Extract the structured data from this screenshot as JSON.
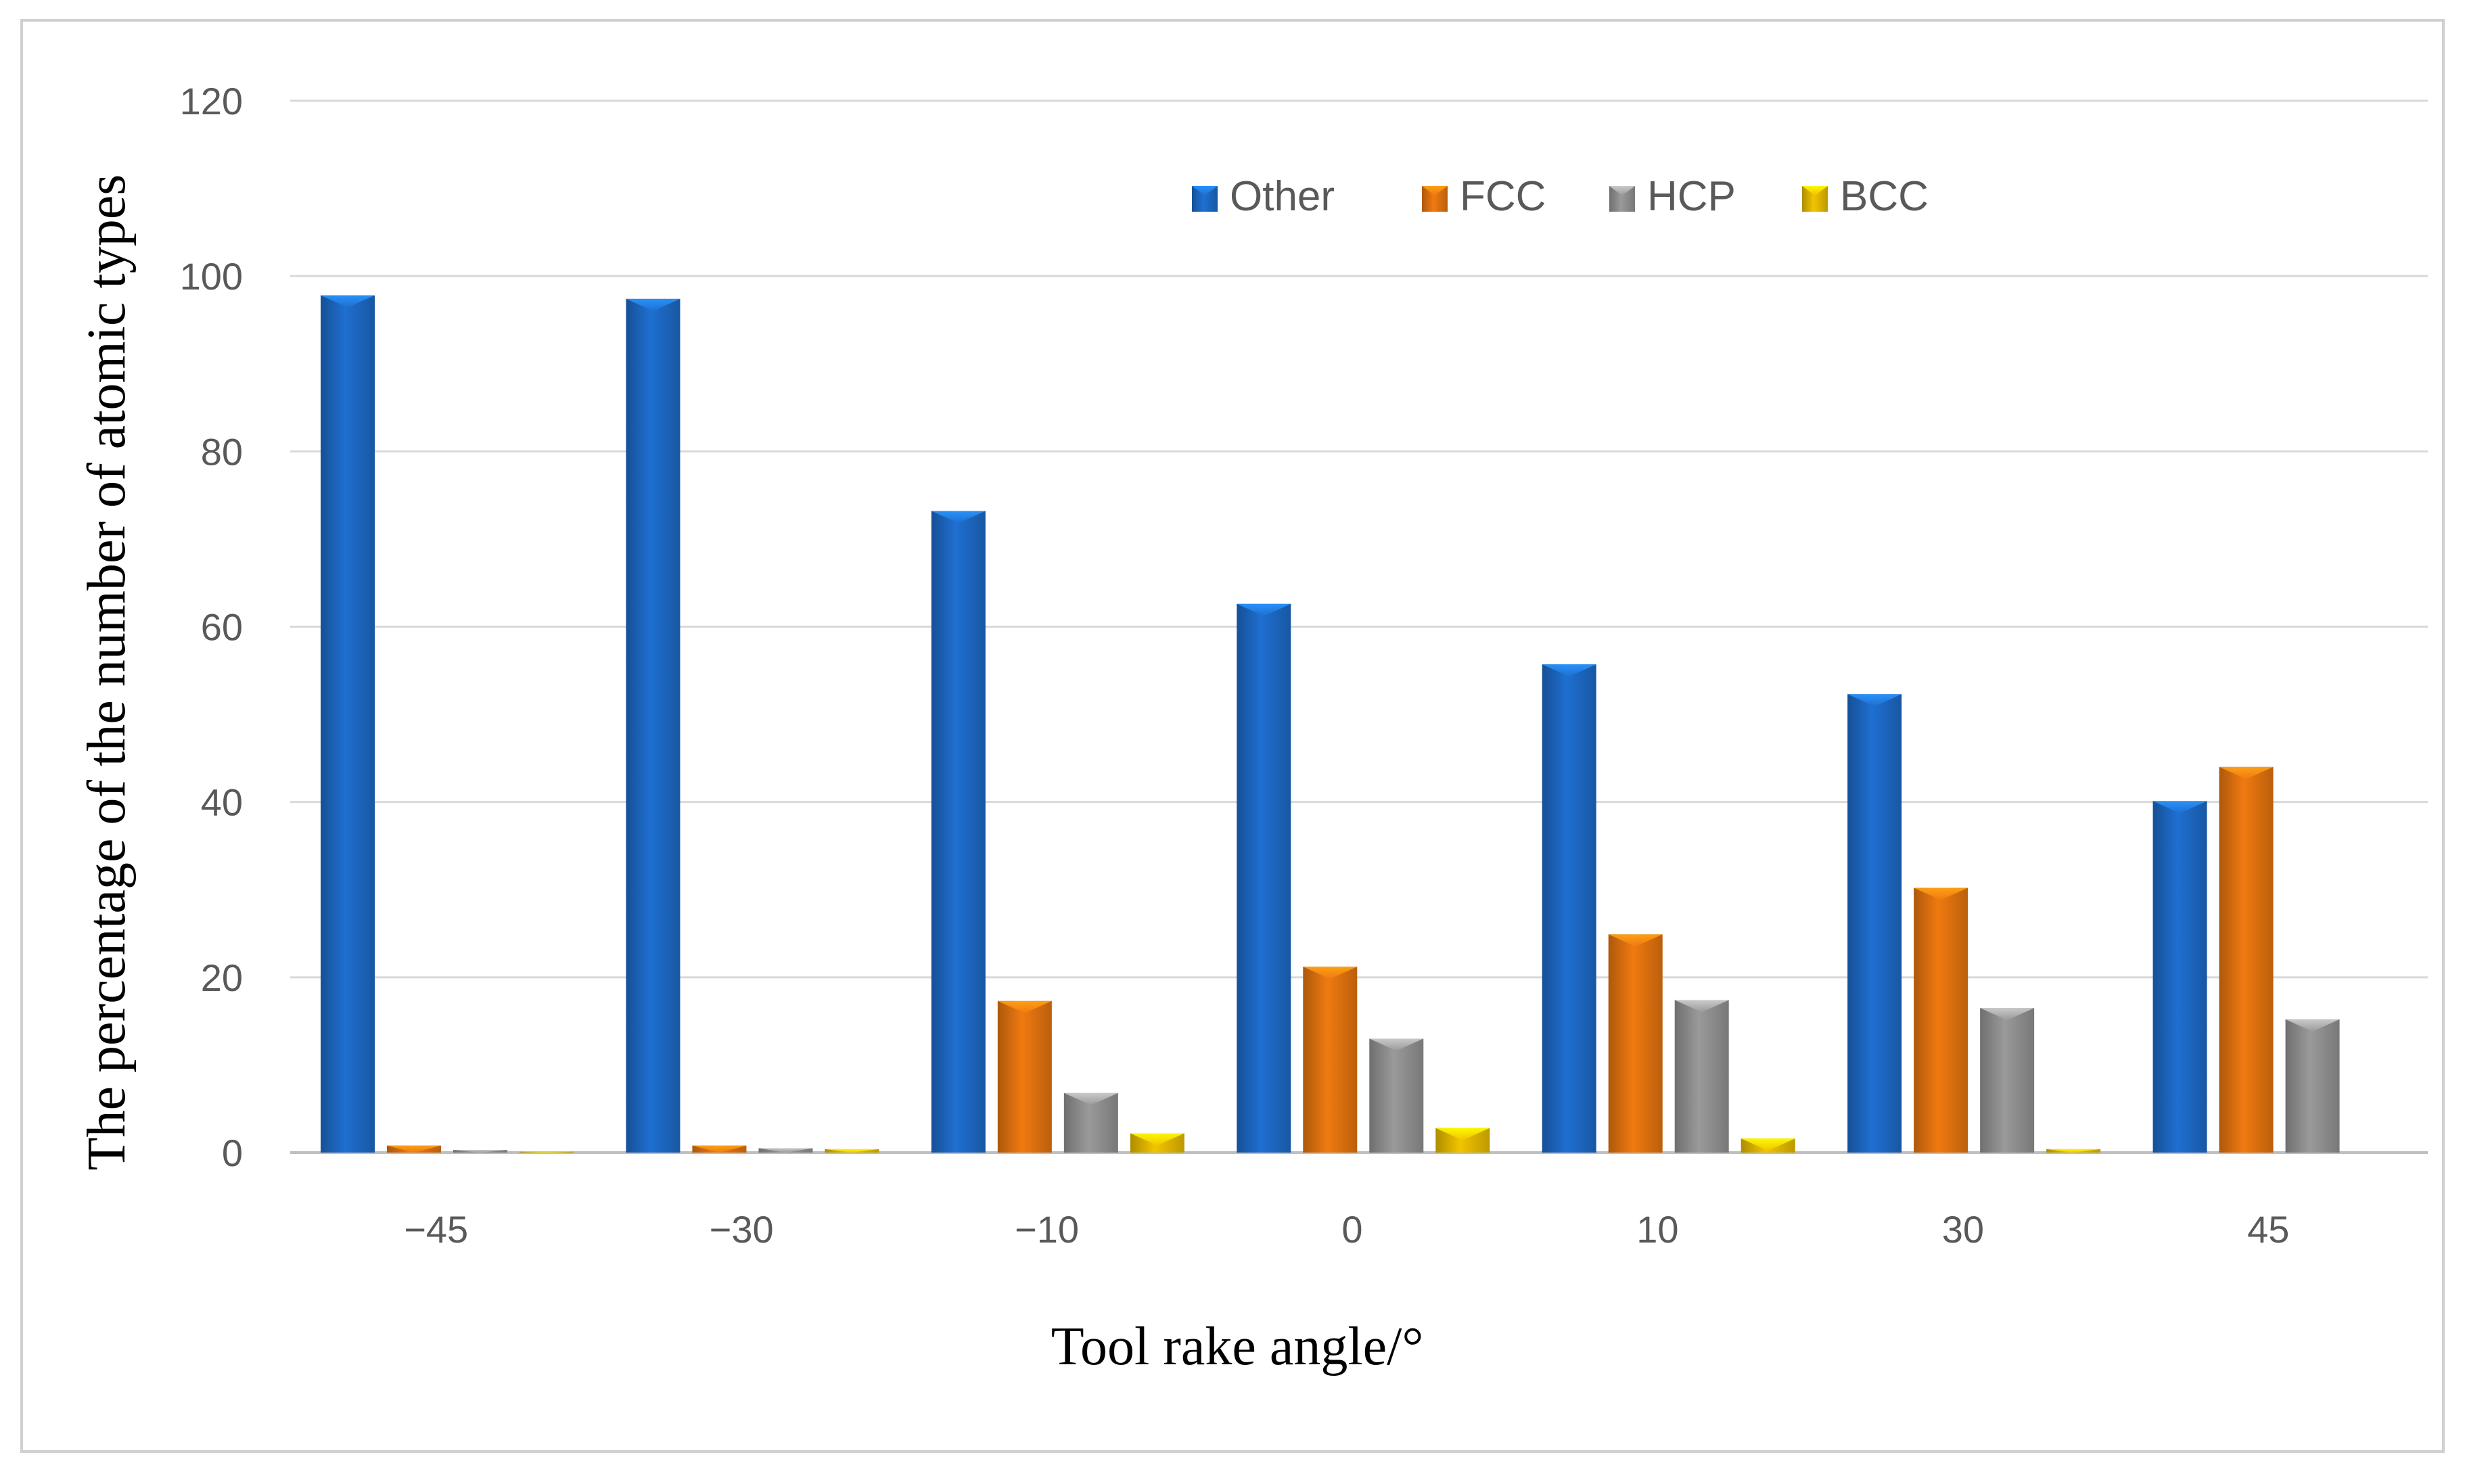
{
  "chart_data": {
    "type": "bar",
    "title": "",
    "xlabel": "Tool rake angle/°",
    "ylabel": "The percentage of the number of atomic types",
    "categories": [
      "−45",
      "−30",
      "−10",
      "0",
      "10",
      "30",
      "45"
    ],
    "ylim": [
      0,
      120
    ],
    "yticks": [
      0,
      20,
      40,
      60,
      80,
      100,
      120
    ],
    "grid": true,
    "legend_position": "top-right",
    "series": [
      {
        "name": "Other",
        "color": "#1f6fd1",
        "values": [
          97.8,
          97.4,
          73.2,
          62.6,
          55.7,
          52.3,
          40.1
        ]
      },
      {
        "name": "FCC",
        "color": "#f07a10",
        "values": [
          0.8,
          0.8,
          17.3,
          21.2,
          24.9,
          30.2,
          44.0
        ]
      },
      {
        "name": "HCP",
        "color": "#9a9a9a",
        "values": [
          0.3,
          0.5,
          6.8,
          13.0,
          17.4,
          16.5,
          15.2
        ]
      },
      {
        "name": "BCC",
        "color": "#f2c400",
        "values": [
          0.1,
          0.4,
          2.2,
          2.8,
          1.6,
          0.4,
          0.0
        ]
      }
    ]
  }
}
